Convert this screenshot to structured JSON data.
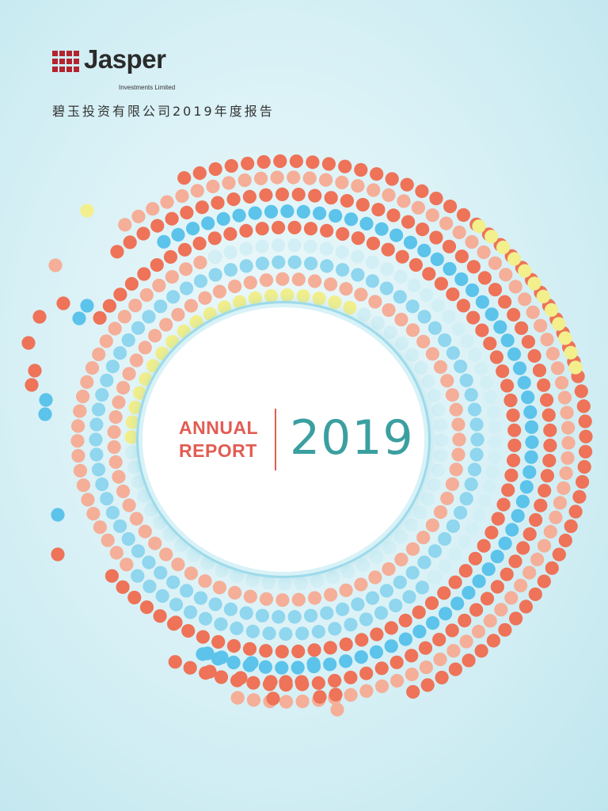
{
  "logo": {
    "name": "Jasper",
    "subtitle": "Investments Limited",
    "icon": "building-grid-icon",
    "color": "#b3242e"
  },
  "cover_title_cn": "碧玉投资有限公司2019年度报告",
  "center": {
    "line1": "ANNUAL",
    "line2": "REPORT",
    "year": "2019"
  },
  "colors": {
    "accent_red": "#e25c53",
    "accent_teal": "#3b9fa0",
    "dot_red": "#ee7358",
    "dot_salmon": "#f5ae98",
    "dot_blue": "#5cc3eb",
    "dot_lightblue": "#8fd6ee",
    "dot_paleblue": "#d2eff5",
    "dot_yellow": "#f2ef8c"
  }
}
